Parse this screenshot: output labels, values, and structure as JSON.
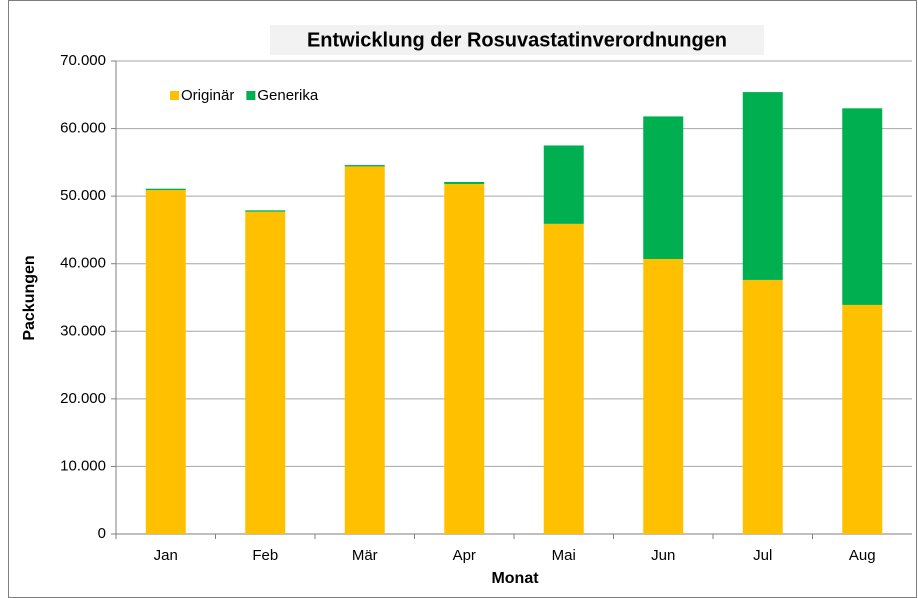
{
  "chart_data": {
    "type": "stacked_bar",
    "title": "Entwicklung der Rosuvastatinverordnungen",
    "x_label": "Monat",
    "y_label": "Packungen",
    "categories": [
      "Jan",
      "Feb",
      "Mär",
      "Apr",
      "Mai",
      "Jun",
      "Jul",
      "Aug"
    ],
    "series": [
      {
        "name": "Originär",
        "color": "#ffc000",
        "values": [
          50900,
          47700,
          54400,
          51800,
          45900,
          40700,
          37600,
          33900
        ]
      },
      {
        "name": "Generika",
        "color": "#00b050",
        "values": [
          200,
          200,
          200,
          300,
          11600,
          21100,
          27800,
          29100
        ]
      }
    ],
    "ylim": [
      0,
      70000
    ],
    "yticks": [
      0,
      {
        "value": 10000,
        "label": "10.000"
      },
      {
        "value": 20000,
        "label": "20.000"
      },
      {
        "value": 30000,
        "label": "30.000"
      },
      {
        "value": 40000,
        "label": "40.000"
      },
      {
        "value": 50000,
        "label": "50.000"
      },
      {
        "value": 60000,
        "label": "60.000"
      },
      {
        "value": 70000,
        "label": "70.000"
      }
    ],
    "grid": true,
    "legend": "top-left"
  }
}
